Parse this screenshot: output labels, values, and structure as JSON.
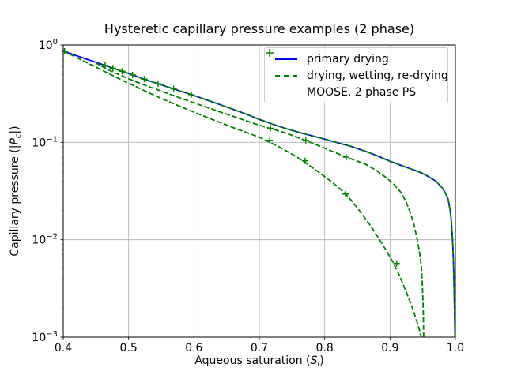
{
  "chart_data": {
    "type": "line",
    "title": "Hysteretic capillary pressure examples (2 phase)",
    "xlabel": "Aqueous saturation (Sl)",
    "ylabel": "Capillary pressure (|Pc|)",
    "xlabel_parts": {
      "pre": "Aqueous saturation (",
      "var": "S",
      "sub": "l",
      "post": ")"
    },
    "ylabel_parts": {
      "pre": "Capillary pressure (|",
      "var": "P",
      "sub": "c",
      "post": "|)"
    },
    "xlim": [
      0.4,
      1.0
    ],
    "ylim_log10": [
      -3,
      0
    ],
    "x_scale": "linear",
    "y_scale": "log",
    "grid": true,
    "x_ticks": [
      {
        "v": 0.4,
        "label": "0.4"
      },
      {
        "v": 0.5,
        "label": "0.5"
      },
      {
        "v": 0.6,
        "label": "0.6"
      },
      {
        "v": 0.7,
        "label": "0.7"
      },
      {
        "v": 0.8,
        "label": "0.8"
      },
      {
        "v": 0.9,
        "label": "0.9"
      },
      {
        "v": 1.0,
        "label": "1.0"
      }
    ],
    "y_ticks": [
      {
        "v": 1.0,
        "base": "10",
        "exp": "0"
      },
      {
        "v": 0.1,
        "base": "10",
        "exp": "−1"
      },
      {
        "v": 0.01,
        "base": "10",
        "exp": "−2"
      },
      {
        "v": 0.001,
        "base": "10",
        "exp": "−3"
      }
    ],
    "colors": {
      "grid": "#b0b0b0",
      "frame": "#000000",
      "primary": "#0000ff",
      "hysteretic": "#008000"
    },
    "legend": {
      "location": "upper right",
      "items": [
        {
          "label": "primary drying",
          "style": "solid",
          "color": "#0000ff"
        },
        {
          "label": "drying, wetting, re-drying",
          "style": "dashed",
          "color": "#008000"
        },
        {
          "label": "MOOSE, 2 phase PS",
          "style": "plus-marker",
          "color": "#008000"
        }
      ]
    },
    "series": [
      {
        "name": "primary drying",
        "color": "#0000ff",
        "style": "solid",
        "points": [
          [
            0.4,
            0.87
          ],
          [
            0.41,
            0.822
          ],
          [
            0.42,
            0.778
          ],
          [
            0.43,
            0.737
          ],
          [
            0.44,
            0.7
          ],
          [
            0.45,
            0.664
          ],
          [
            0.46,
            0.63
          ],
          [
            0.47,
            0.597
          ],
          [
            0.48,
            0.565
          ],
          [
            0.49,
            0.537
          ],
          [
            0.5,
            0.51
          ],
          [
            0.51,
            0.482
          ],
          [
            0.52,
            0.455
          ],
          [
            0.53,
            0.432
          ],
          [
            0.54,
            0.41
          ],
          [
            0.55,
            0.39
          ],
          [
            0.56,
            0.37
          ],
          [
            0.57,
            0.352
          ],
          [
            0.58,
            0.335
          ],
          [
            0.59,
            0.319
          ],
          [
            0.6,
            0.303
          ],
          [
            0.62,
            0.272
          ],
          [
            0.64,
            0.244
          ],
          [
            0.66,
            0.218
          ],
          [
            0.68,
            0.195
          ],
          [
            0.7,
            0.172
          ],
          [
            0.72,
            0.154
          ],
          [
            0.74,
            0.139
          ],
          [
            0.76,
            0.127
          ],
          [
            0.78,
            0.117
          ],
          [
            0.8,
            0.108
          ],
          [
            0.82,
            0.099
          ],
          [
            0.84,
            0.091
          ],
          [
            0.86,
            0.082
          ],
          [
            0.88,
            0.073
          ],
          [
            0.9,
            0.064
          ],
          [
            0.92,
            0.057
          ],
          [
            0.94,
            0.051
          ],
          [
            0.95,
            0.048
          ],
          [
            0.96,
            0.044
          ],
          [
            0.97,
            0.04
          ],
          [
            0.98,
            0.034
          ],
          [
            0.985,
            0.03
          ],
          [
            0.989,
            0.026
          ],
          [
            0.992,
            0.02
          ],
          [
            0.994,
            0.015
          ],
          [
            0.996,
            0.009
          ],
          [
            0.997,
            0.006
          ],
          [
            0.998,
            0.0033
          ],
          [
            0.9985,
            0.0022
          ],
          [
            0.999,
            0.0014
          ],
          [
            0.9993,
            0.001
          ]
        ]
      },
      {
        "name": "drying, wetting, re-drying",
        "color": "#008000",
        "style": "dashed",
        "branches": {
          "drying_retrace": [
            [
              0.46,
              0.63
            ],
            [
              0.47,
              0.597
            ],
            [
              0.48,
              0.565
            ],
            [
              0.49,
              0.537
            ],
            [
              0.5,
              0.51
            ],
            [
              0.51,
              0.482
            ],
            [
              0.52,
              0.455
            ],
            [
              0.53,
              0.432
            ],
            [
              0.54,
              0.41
            ],
            [
              0.55,
              0.39
            ],
            [
              0.56,
              0.37
            ],
            [
              0.57,
              0.352
            ],
            [
              0.58,
              0.335
            ],
            [
              0.59,
              0.319
            ],
            [
              0.6,
              0.303
            ],
            [
              0.62,
              0.272
            ],
            [
              0.64,
              0.244
            ],
            [
              0.66,
              0.218
            ],
            [
              0.68,
              0.195
            ],
            [
              0.7,
              0.172
            ],
            [
              0.72,
              0.154
            ],
            [
              0.74,
              0.139
            ],
            [
              0.76,
              0.127
            ],
            [
              0.78,
              0.117
            ],
            [
              0.8,
              0.108
            ],
            [
              0.82,
              0.099
            ],
            [
              0.84,
              0.091
            ],
            [
              0.86,
              0.082
            ],
            [
              0.88,
              0.073
            ],
            [
              0.9,
              0.064
            ],
            [
              0.92,
              0.057
            ],
            [
              0.94,
              0.051
            ],
            [
              0.95,
              0.048
            ],
            [
              0.96,
              0.044
            ],
            [
              0.97,
              0.04
            ],
            [
              0.98,
              0.034
            ],
            [
              0.985,
              0.03
            ],
            [
              0.989,
              0.026
            ],
            [
              0.992,
              0.02
            ],
            [
              0.994,
              0.015
            ],
            [
              0.996,
              0.009
            ],
            [
              0.997,
              0.006
            ],
            [
              0.998,
              0.0033
            ],
            [
              0.9985,
              0.0022
            ],
            [
              0.999,
              0.0014
            ],
            [
              0.9993,
              0.001
            ]
          ],
          "wetting": [
            [
              0.4,
              0.87
            ],
            [
              0.415,
              0.776
            ],
            [
              0.43,
              0.69
            ],
            [
              0.445,
              0.615
            ],
            [
              0.46,
              0.548
            ],
            [
              0.475,
              0.488
            ],
            [
              0.49,
              0.435
            ],
            [
              0.505,
              0.39
            ],
            [
              0.52,
              0.35
            ],
            [
              0.535,
              0.314
            ],
            [
              0.55,
              0.283
            ],
            [
              0.565,
              0.256
            ],
            [
              0.58,
              0.232
            ],
            [
              0.595,
              0.211
            ],
            [
              0.61,
              0.192
            ],
            [
              0.625,
              0.175
            ],
            [
              0.64,
              0.16
            ],
            [
              0.655,
              0.146
            ],
            [
              0.67,
              0.134
            ],
            [
              0.685,
              0.123
            ],
            [
              0.7,
              0.113
            ],
            [
              0.715,
              0.101
            ],
            [
              0.73,
              0.09
            ],
            [
              0.745,
              0.079
            ],
            [
              0.76,
              0.069
            ],
            [
              0.775,
              0.059
            ],
            [
              0.79,
              0.05
            ],
            [
              0.805,
              0.042
            ],
            [
              0.82,
              0.035
            ],
            [
              0.832,
              0.0295
            ],
            [
              0.845,
              0.0235
            ],
            [
              0.858,
              0.018
            ],
            [
              0.87,
              0.014
            ],
            [
              0.882,
              0.0105
            ],
            [
              0.894,
              0.0078
            ],
            [
              0.905,
              0.0058
            ],
            [
              0.915,
              0.0042
            ],
            [
              0.924,
              0.003
            ],
            [
              0.932,
              0.0022
            ],
            [
              0.939,
              0.0016
            ],
            [
              0.944,
              0.00125
            ],
            [
              0.948,
              0.001
            ]
          ],
          "re_drying": [
            [
              0.9515,
              0.001
            ],
            [
              0.9512,
              0.0013
            ],
            [
              0.951,
              0.0017
            ],
            [
              0.9505,
              0.0022
            ],
            [
              0.9498,
              0.003
            ],
            [
              0.949,
              0.004
            ],
            [
              0.948,
              0.0052
            ],
            [
              0.946,
              0.0068
            ],
            [
              0.944,
              0.0082
            ],
            [
              0.941,
              0.0105
            ],
            [
              0.937,
              0.014
            ],
            [
              0.931,
              0.019
            ],
            [
              0.924,
              0.025
            ],
            [
              0.916,
              0.031
            ],
            [
              0.906,
              0.037
            ],
            [
              0.895,
              0.043
            ],
            [
              0.88,
              0.051
            ],
            [
              0.862,
              0.06
            ],
            [
              0.845,
              0.066
            ],
            [
              0.833,
              0.0705
            ],
            [
              0.815,
              0.079
            ],
            [
              0.795,
              0.09
            ],
            [
              0.775,
              0.102
            ],
            [
              0.755,
              0.115
            ],
            [
              0.735,
              0.128
            ],
            [
              0.715,
              0.14
            ],
            [
              0.695,
              0.154
            ],
            [
              0.675,
              0.171
            ],
            [
              0.655,
              0.19
            ],
            [
              0.635,
              0.211
            ],
            [
              0.615,
              0.235
            ],
            [
              0.595,
              0.262
            ],
            [
              0.575,
              0.292
            ],
            [
              0.555,
              0.327
            ],
            [
              0.535,
              0.365
            ],
            [
              0.515,
              0.41
            ],
            [
              0.495,
              0.465
            ],
            [
              0.48,
              0.515
            ],
            [
              0.468,
              0.56
            ],
            [
              0.458,
              0.61
            ],
            [
              0.45,
              0.655
            ]
          ]
        }
      }
    ],
    "markers": {
      "name": "MOOSE, 2 phase PS",
      "symbol": "+",
      "color": "#008000",
      "points": [
        [
          0.402,
          0.862
        ],
        [
          0.464,
          0.617
        ],
        [
          0.476,
          0.578
        ],
        [
          0.49,
          0.537
        ],
        [
          0.506,
          0.493
        ],
        [
          0.524,
          0.446
        ],
        [
          0.545,
          0.4
        ],
        [
          0.569,
          0.354
        ],
        [
          0.596,
          0.309
        ],
        [
          0.716,
          0.105
        ],
        [
          0.77,
          0.0645
        ],
        [
          0.832,
          0.0295
        ],
        [
          0.91,
          0.0057
        ],
        [
          0.717,
          0.1395
        ],
        [
          0.771,
          0.105
        ],
        [
          0.833,
          0.0705
        ]
      ]
    }
  }
}
